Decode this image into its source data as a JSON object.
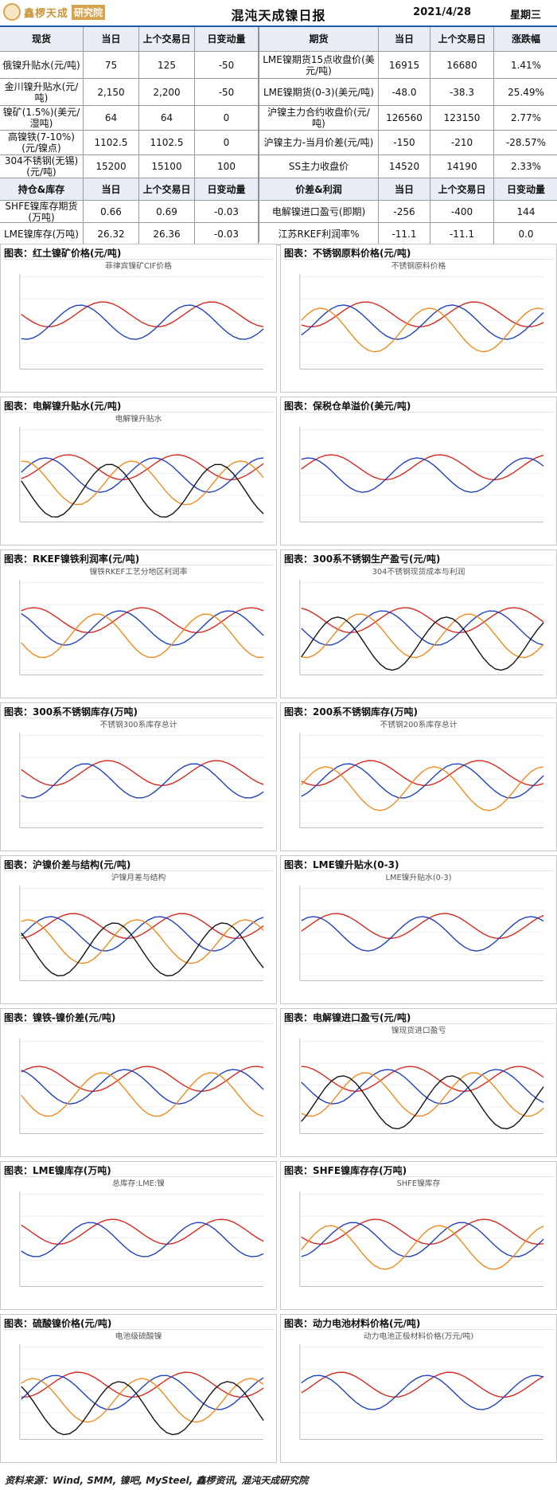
{
  "header": {
    "logo_text": "鑫椤天成",
    "logo_box": "研究院",
    "title": "混沌天成镍日报",
    "date": "2021/4/28",
    "weekday": "星期三"
  },
  "spot_table": {
    "headers": [
      "现货",
      "当日",
      "上个交易日",
      "日变动量"
    ],
    "rows": [
      {
        "name": "俄镍升贴水(元/吨)",
        "today": "75",
        "prev": "125",
        "chg": "-50"
      },
      {
        "name": "金川镍升贴水(元/吨)",
        "today": "2,150",
        "prev": "2,200",
        "chg": "-50"
      },
      {
        "name": "镍矿(1.5%)(美元/湿吨)",
        "today": "64",
        "prev": "64",
        "chg": "0"
      },
      {
        "name": "高镍铁(7-10%)(元/镍点)",
        "today": "1102.5",
        "prev": "1102.5",
        "chg": "0"
      },
      {
        "name": "304不锈钢(无锡)(元/吨)",
        "today": "15200",
        "prev": "15100",
        "chg": "100"
      }
    ],
    "sub_headers": [
      "持仓&库存",
      "当日",
      "上个交易日",
      "日变动量"
    ],
    "sub_rows": [
      {
        "name": "SHFE镍库存期货(万吨)",
        "today": "0.66",
        "prev": "0.69",
        "chg": "-0.03"
      },
      {
        "name": "LME镍库存(万吨)",
        "today": "26.32",
        "prev": "26.36",
        "chg": "-0.03"
      }
    ]
  },
  "futures_table": {
    "headers": [
      "期货",
      "当日",
      "上个交易日",
      "涨跌幅"
    ],
    "rows": [
      {
        "name": "LME镍期货15点收盘价(美元/吨)",
        "today": "16915",
        "prev": "16680",
        "chg": "1.41%"
      },
      {
        "name": "LME镍期货(0-3)(美元/吨)",
        "today": "-48.0",
        "prev": "-38.3",
        "chg": "25.49%"
      },
      {
        "name": "沪镍主力合约收盘价(元/吨)",
        "today": "126560",
        "prev": "123150",
        "chg": "2.77%"
      },
      {
        "name": "沪镍主力-当月价差(元/吨)",
        "today": "-150",
        "prev": "-210",
        "chg": "-28.57%"
      },
      {
        "name": "SS主力收盘价",
        "today": "14520",
        "prev": "14190",
        "chg": "2.33%"
      }
    ],
    "sub_headers": [
      "价差&利润",
      "当日",
      "上个交易日",
      "日变动量"
    ],
    "sub_rows": [
      {
        "name": "电解镍进口盈亏(即期)",
        "today": "-256",
        "prev": "-400",
        "chg": "144"
      },
      {
        "name": "江苏RKEF利润率%",
        "today": "-11.1",
        "prev": "-11.1",
        "chg": "0.0"
      }
    ]
  },
  "charts": [
    {
      "caption": "图表：红土镍矿价格(元/吨)",
      "title": "菲律宾镍矿CIF价格"
    },
    {
      "caption": "图表：不锈钢原料价格(元/吨)",
      "title": "不锈钢原料价格"
    },
    {
      "caption": "图表：电解镍升贴水(元/吨)",
      "title": "电解镍升贴水"
    },
    {
      "caption": "图表：保税仓单溢价(美元/吨)",
      "title": ""
    },
    {
      "caption": "图表：RKEF镍铁利润率(元/吨)",
      "title": "镍铁RKEF工艺分地区利润率"
    },
    {
      "caption": "图表：300系不锈钢生产盈亏(元/吨)",
      "title": "304不锈钢现货成本与利润"
    },
    {
      "caption": "图表：300系不锈钢库存(万吨)",
      "title": "不锈钢300系库存总计"
    },
    {
      "caption": "图表：200系不锈钢库存(万吨)",
      "title": "不锈钢200系库存总计"
    },
    {
      "caption": "图表：沪镍价差与结构(元/吨)",
      "title": "沪镍月差与结构"
    },
    {
      "caption": "图表：LME镍升贴水(0-3)",
      "title": "LME镍升贴水(0-3)"
    },
    {
      "caption": "图表：镍铁-镍价差(元/吨)",
      "title": ""
    },
    {
      "caption": "图表：电解镍进口盈亏(元/吨)",
      "title": "镍现货进口盈亏"
    },
    {
      "caption": "图表：LME镍库存(万吨)",
      "title": "总库存:LME:镍"
    },
    {
      "caption": "图表：SHFE镍库存存(万吨)",
      "title": "SHFE镍库存"
    },
    {
      "caption": "图表：硫酸镍价格(元/吨)",
      "title": "电池级硫酸镍"
    },
    {
      "caption": "图表：动力电池材料价格(元/吨)",
      "title": "动力电池正极材料价格(万元/吨)"
    }
  ],
  "footer": {
    "source": "资料来源：Wind, SMM, 镍吧, MySteel, 鑫椤资讯, 混沌天成研究院"
  }
}
